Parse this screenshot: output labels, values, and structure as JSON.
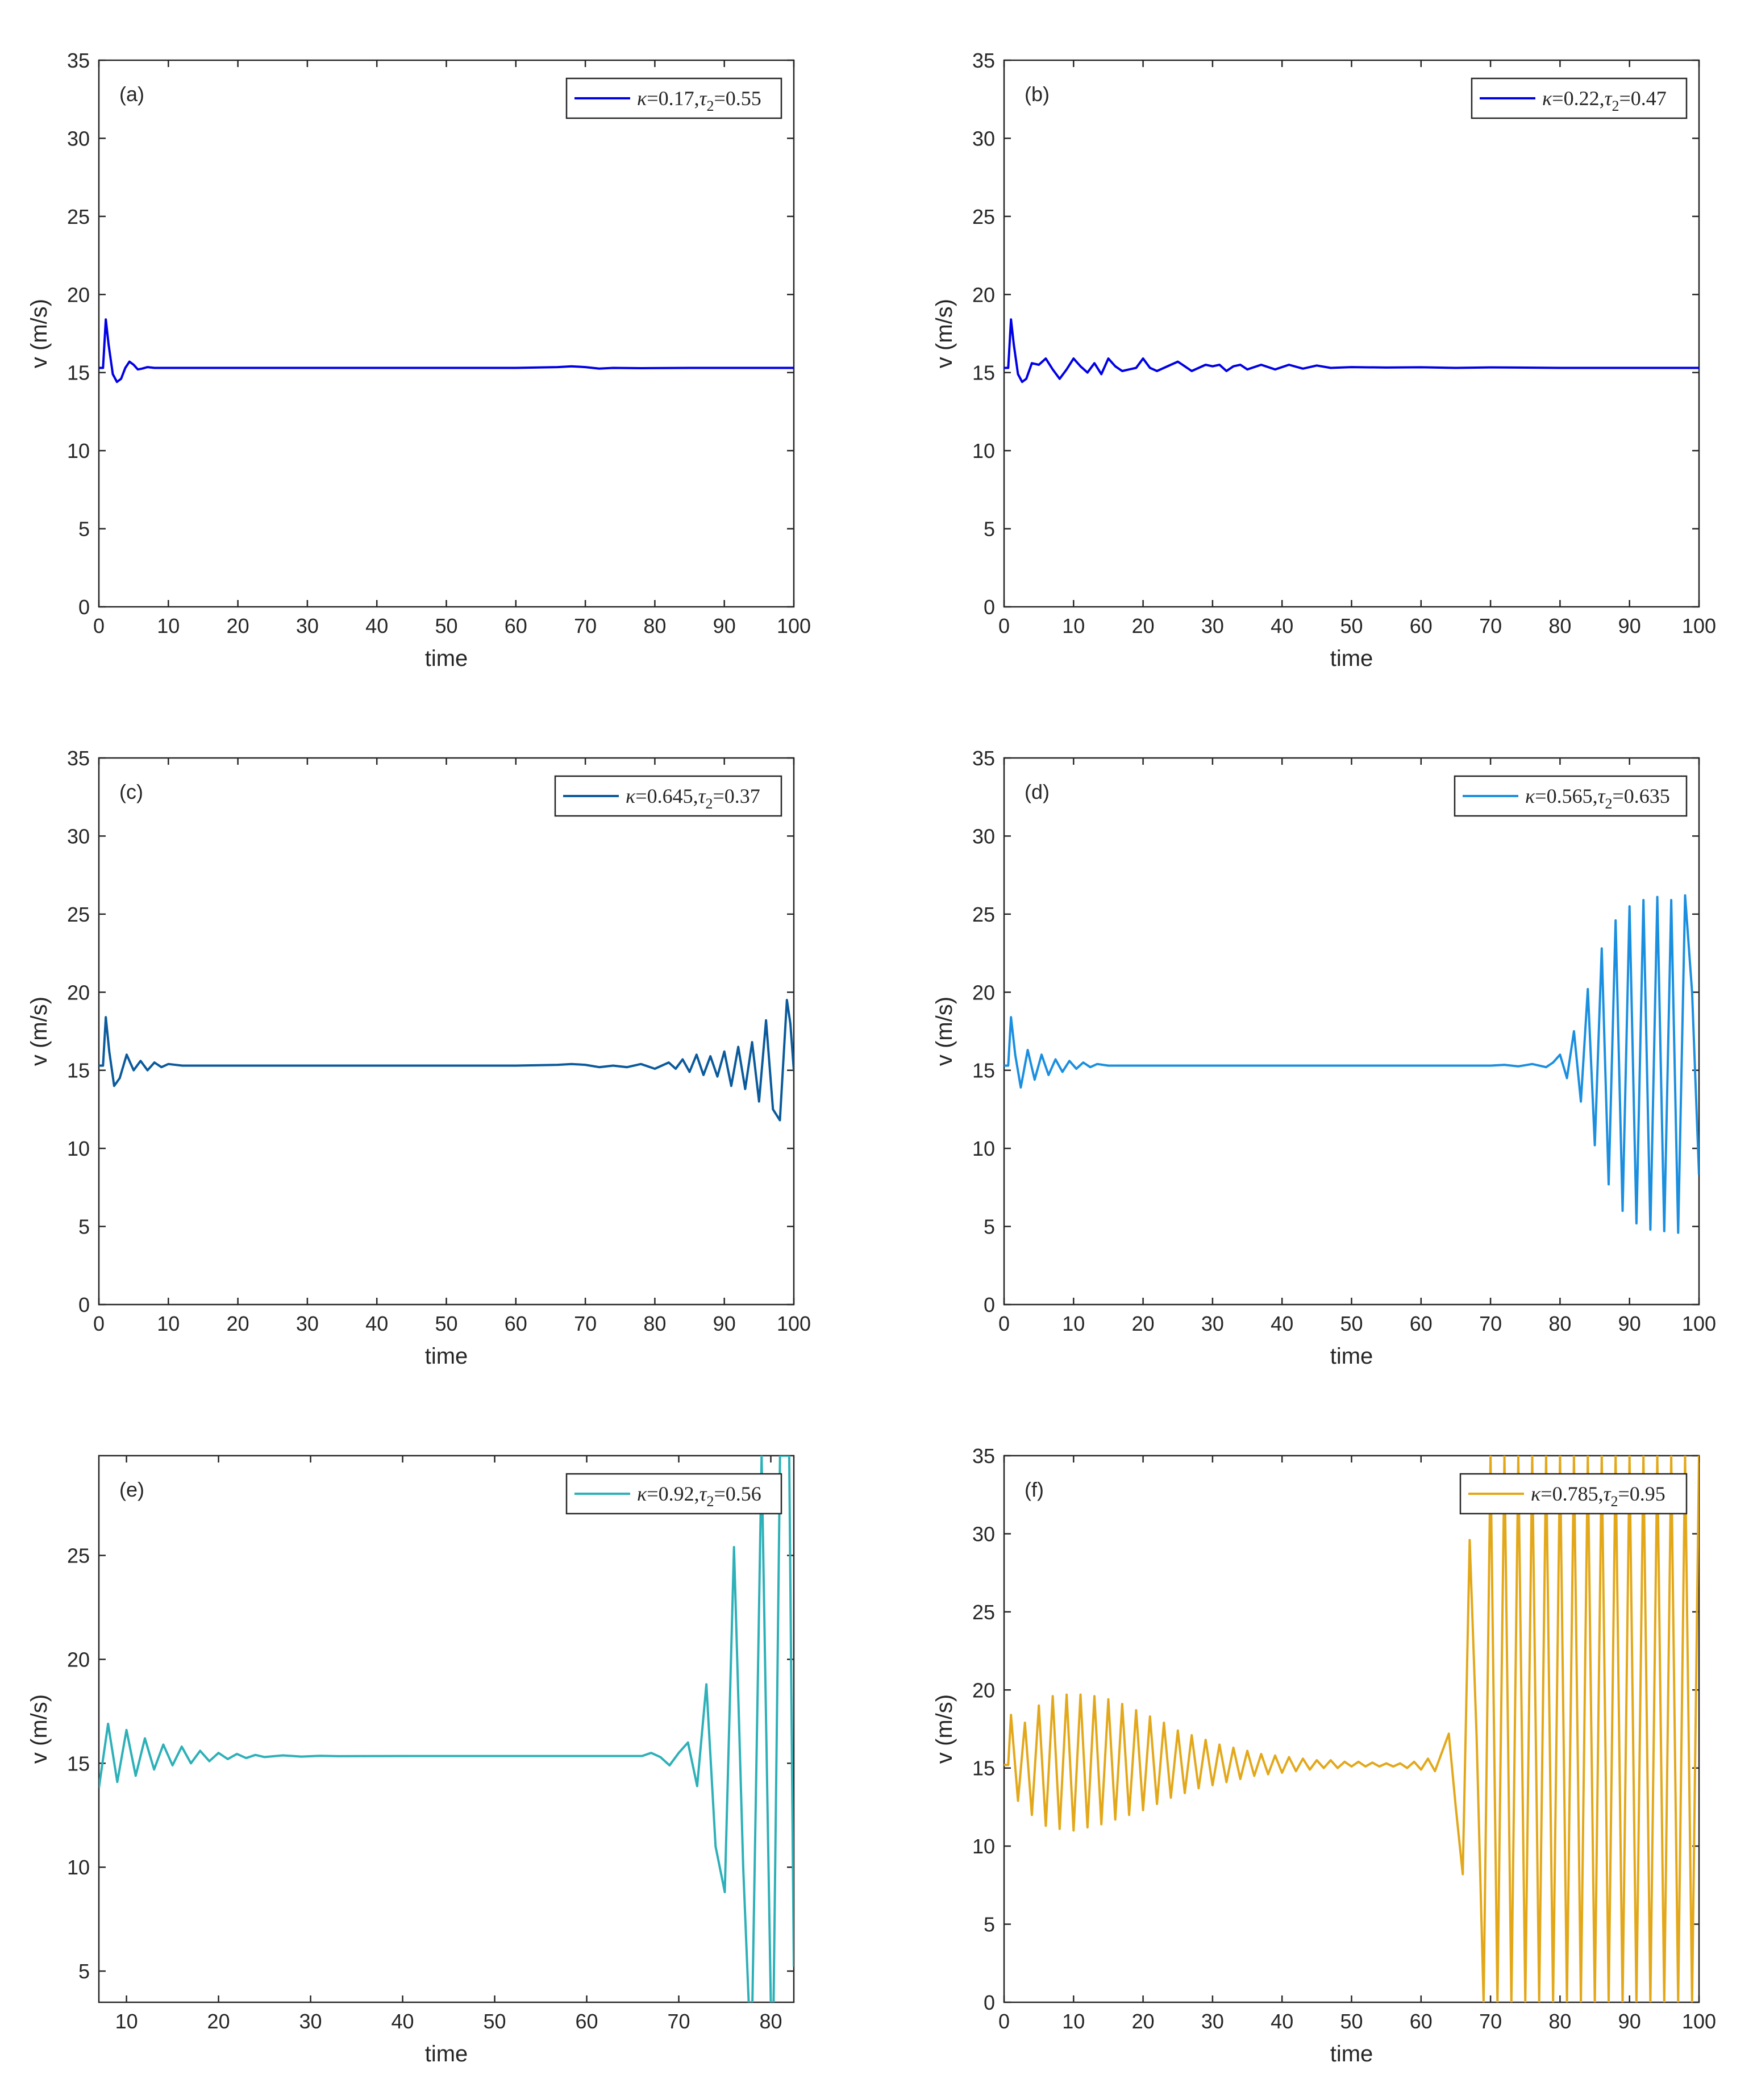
{
  "chart_data": [
    {
      "type": "line",
      "panel_label": "(a)",
      "xlabel": "time",
      "ylabel": "v (m/s)",
      "xlim": [
        0,
        100
      ],
      "ylim": [
        0,
        35
      ],
      "xticks": [
        0,
        10,
        20,
        30,
        40,
        50,
        60,
        70,
        80,
        90,
        100
      ],
      "yticks": [
        0,
        5,
        10,
        15,
        20,
        25,
        30,
        35
      ],
      "legend_location": "top-right",
      "series": [
        {
          "name": "κ=0.17, τ2=0.55",
          "legend": {
            "kappa_label": "κ",
            "kappa_value": "=0.17,",
            "tau_label": "τ",
            "tau_sub": "2",
            "tau_value": "=0.55"
          },
          "color": "#0000e6",
          "x": [
            0,
            0.6,
            1.0,
            1.4,
            2.0,
            2.6,
            3.2,
            3.8,
            4.4,
            5.0,
            5.6,
            6.2,
            7.0,
            8.0,
            10,
            20,
            40,
            60,
            66,
            68,
            70,
            72,
            74,
            78,
            85,
            100
          ],
          "y": [
            15.3,
            15.3,
            18.4,
            16.8,
            14.9,
            14.4,
            14.6,
            15.3,
            15.7,
            15.5,
            15.2,
            15.25,
            15.35,
            15.3,
            15.3,
            15.3,
            15.3,
            15.3,
            15.35,
            15.4,
            15.35,
            15.25,
            15.3,
            15.28,
            15.3,
            15.3
          ]
        }
      ]
    },
    {
      "type": "line",
      "panel_label": "(b)",
      "xlabel": "time",
      "ylabel": "v (m/s)",
      "xlim": [
        0,
        100
      ],
      "ylim": [
        0,
        35
      ],
      "xticks": [
        0,
        10,
        20,
        30,
        40,
        50,
        60,
        70,
        80,
        90,
        100
      ],
      "yticks": [
        0,
        5,
        10,
        15,
        20,
        25,
        30,
        35
      ],
      "legend_location": "top-right",
      "series": [
        {
          "name": "κ=0.22, τ2=0.47",
          "legend": {
            "kappa_label": "κ",
            "kappa_value": "=0.22,",
            "tau_label": "τ",
            "tau_sub": "2",
            "tau_value": "=0.47"
          },
          "color": "#0000e6",
          "x": [
            0,
            0.6,
            1.0,
            1.4,
            2.0,
            2.6,
            3.2,
            4.0,
            5.0,
            6.0,
            7.0,
            8.0,
            9.0,
            10.0,
            11.0,
            12.0,
            13.0,
            14.0,
            15.0,
            16.0,
            17.0,
            18.0,
            19.0,
            20.0,
            21.0,
            22.0,
            23.0,
            24.0,
            25.0,
            26.0,
            27.0,
            28.0,
            29.0,
            30.0,
            31.0,
            32.0,
            33.0,
            34.0,
            35.0,
            37.0,
            39.0,
            41.0,
            43.0,
            45.0,
            47.0,
            50.0,
            55.0,
            60.0,
            65.0,
            70.0,
            80.0,
            90.0,
            100.0
          ],
          "y": [
            15.3,
            15.3,
            18.4,
            16.8,
            14.9,
            14.4,
            14.6,
            15.6,
            15.5,
            15.9,
            15.2,
            14.6,
            15.2,
            15.9,
            15.4,
            15.0,
            15.6,
            14.9,
            15.9,
            15.4,
            15.1,
            15.2,
            15.3,
            15.9,
            15.3,
            15.1,
            15.3,
            15.5,
            15.7,
            15.4,
            15.1,
            15.3,
            15.5,
            15.4,
            15.5,
            15.1,
            15.4,
            15.5,
            15.2,
            15.5,
            15.2,
            15.5,
            15.25,
            15.45,
            15.3,
            15.35,
            15.32,
            15.34,
            15.3,
            15.33,
            15.3,
            15.3,
            15.3
          ]
        }
      ]
    },
    {
      "type": "line",
      "panel_label": "(c)",
      "xlabel": "time",
      "ylabel": "v (m/s)",
      "xlim": [
        0,
        100
      ],
      "ylim": [
        0,
        35
      ],
      "xticks": [
        0,
        10,
        20,
        30,
        40,
        50,
        60,
        70,
        80,
        90,
        100
      ],
      "yticks": [
        0,
        5,
        10,
        15,
        20,
        25,
        30,
        35
      ],
      "legend_location": "top-right",
      "series": [
        {
          "name": "κ=0.645, τ2=0.37",
          "legend": {
            "kappa_label": "κ",
            "kappa_value": "=0.645,",
            "tau_label": "τ",
            "tau_sub": "2",
            "tau_value": "=0.37"
          },
          "color": "#0a5a9c",
          "x": [
            0,
            0.6,
            1.0,
            1.5,
            2.2,
            3.0,
            4.0,
            5.0,
            6.0,
            7.0,
            8.0,
            9.0,
            10.0,
            12.0,
            15.0,
            30.0,
            60.0,
            66.0,
            68.0,
            70.0,
            72.0,
            74.0,
            76.0,
            78.0,
            80.0,
            82.0,
            83.0,
            84.0,
            85.0,
            86.0,
            87.0,
            88.0,
            89.0,
            90.0,
            91.0,
            92.0,
            93.0,
            94.0,
            95.0,
            96.0,
            97.0,
            98.0,
            99.0,
            99.5,
            100.0
          ],
          "y": [
            15.3,
            15.3,
            18.4,
            16.2,
            14.0,
            14.5,
            16.0,
            15.0,
            15.6,
            15.0,
            15.5,
            15.2,
            15.4,
            15.3,
            15.3,
            15.3,
            15.3,
            15.35,
            15.4,
            15.35,
            15.2,
            15.3,
            15.2,
            15.4,
            15.1,
            15.5,
            15.1,
            15.7,
            14.9,
            16.0,
            14.7,
            15.9,
            14.6,
            16.2,
            14.0,
            16.5,
            13.8,
            16.8,
            13.0,
            18.2,
            12.5,
            11.8,
            19.5,
            18.0,
            15.0
          ]
        }
      ]
    },
    {
      "type": "line",
      "panel_label": "(d)",
      "xlabel": "time",
      "ylabel": "v (m/s)",
      "xlim": [
        0,
        100
      ],
      "ylim": [
        0,
        35
      ],
      "xticks": [
        0,
        10,
        20,
        30,
        40,
        50,
        60,
        70,
        80,
        90,
        100
      ],
      "yticks": [
        0,
        5,
        10,
        15,
        20,
        25,
        30,
        35
      ],
      "legend_location": "top-right",
      "series": [
        {
          "name": "κ=0.565, τ2=0.635",
          "legend": {
            "kappa_label": "κ",
            "kappa_value": "=0.565,",
            "tau_label": "τ",
            "tau_sub": "2",
            "tau_value": "=0.635"
          },
          "color": "#1a8fe0",
          "x": [
            0,
            0.6,
            1.0,
            1.6,
            2.4,
            3.4,
            4.4,
            5.4,
            6.4,
            7.4,
            8.4,
            9.4,
            10.4,
            11.4,
            12.4,
            13.4,
            15.0,
            30.0,
            60.0,
            70.0,
            72.0,
            74.0,
            76.0,
            78.0,
            79.0,
            80.0,
            81.0,
            82.0,
            83.0,
            84.0,
            85.0,
            86.0,
            87.0,
            88.0,
            89.0,
            90.0,
            91.0,
            92.0,
            93.0,
            94.0,
            95.0,
            96.0,
            97.0,
            98.0,
            99.0,
            100.0
          ],
          "y": [
            15.3,
            15.3,
            18.4,
            16.0,
            13.9,
            16.3,
            14.4,
            16.0,
            14.7,
            15.7,
            14.9,
            15.6,
            15.1,
            15.5,
            15.2,
            15.4,
            15.3,
            15.3,
            15.3,
            15.3,
            15.35,
            15.25,
            15.4,
            15.2,
            15.5,
            16.0,
            14.5,
            17.5,
            13.0,
            20.2,
            10.2,
            22.8,
            7.7,
            24.6,
            6.0,
            25.5,
            5.2,
            25.9,
            4.8,
            26.1,
            4.7,
            25.9,
            4.6,
            26.2,
            20.0,
            8.3
          ]
        }
      ]
    },
    {
      "type": "line",
      "panel_label": "(e)",
      "xlabel": "time",
      "ylabel": "v (m/s)",
      "xlim": [
        7,
        82.5
      ],
      "ylim": [
        3.5,
        29.8
      ],
      "xticks": [
        10,
        20,
        30,
        40,
        50,
        60,
        70,
        80
      ],
      "yticks": [
        5,
        10,
        15,
        20,
        25
      ],
      "legend_location": "top-right",
      "series": [
        {
          "name": "κ=0.92, τ2=0.56",
          "legend": {
            "kappa_label": "κ",
            "kappa_value": "=0.92,",
            "tau_label": "τ",
            "tau_sub": "2",
            "tau_value": "=0.56"
          },
          "color": "#2db0b8",
          "x": [
            7.0,
            8.0,
            9.0,
            10.0,
            11.0,
            12.0,
            13.0,
            14.0,
            15.0,
            16.0,
            17.0,
            18.0,
            19.0,
            20.0,
            21.0,
            22.0,
            23.0,
            24.0,
            25.0,
            27.0,
            29.0,
            31.0,
            33.0,
            40.0,
            60.0,
            66.0,
            67.0,
            68.0,
            69.0,
            70.0,
            71.0,
            72.0,
            73.0,
            74.0,
            75.0,
            76.0,
            77.0,
            77.6,
            78.0,
            79.0,
            80.0,
            80.3,
            81.0,
            82.0,
            82.5
          ],
          "y": [
            13.8,
            16.9,
            14.1,
            16.6,
            14.4,
            16.2,
            14.7,
            15.9,
            14.9,
            15.8,
            15.0,
            15.6,
            15.1,
            15.5,
            15.2,
            15.45,
            15.25,
            15.4,
            15.3,
            15.38,
            15.32,
            15.36,
            15.34,
            15.35,
            15.35,
            15.35,
            15.5,
            15.3,
            14.9,
            15.5,
            16.0,
            13.9,
            18.8,
            11.0,
            8.8,
            25.4,
            10.0,
            3.5,
            3.5,
            29.8,
            3.5,
            3.5,
            29.8,
            29.8,
            5.2
          ]
        }
      ]
    },
    {
      "type": "line",
      "panel_label": "(f)",
      "xlabel": "time",
      "ylabel": "v (m/s)",
      "xlim": [
        0,
        100
      ],
      "ylim": [
        0,
        35
      ],
      "xticks": [
        0,
        10,
        20,
        30,
        40,
        50,
        60,
        70,
        80,
        90,
        100
      ],
      "yticks": [
        0,
        5,
        10,
        15,
        20,
        25,
        30,
        35
      ],
      "legend_location": "top-right",
      "series": [
        {
          "name": "κ=0.785, τ2=0.95",
          "legend": {
            "kappa_label": "κ",
            "kappa_value": "=0.785,",
            "tau_label": "τ",
            "tau_sub": "2",
            "tau_value": "=0.95"
          },
          "color": "#e3a81a",
          "x": [
            0.0,
            0.6,
            1.0,
            2.0,
            3.0,
            4.0,
            5.0,
            6.0,
            7.0,
            8.0,
            9.0,
            10.0,
            11.0,
            12.0,
            13.0,
            14.0,
            15.0,
            16.0,
            17.0,
            18.0,
            19.0,
            20.0,
            21.0,
            22.0,
            23.0,
            24.0,
            25.0,
            26.0,
            27.0,
            28.0,
            29.0,
            30.0,
            31.0,
            32.0,
            33.0,
            34.0,
            35.0,
            36.0,
            37.0,
            38.0,
            39.0,
            40.0,
            41.0,
            42.0,
            43.0,
            44.0,
            45.0,
            46.0,
            47.0,
            48.0,
            49.0,
            50.0,
            51.0,
            52.0,
            53.0,
            54.0,
            55.0,
            56.0,
            57.0,
            58.0,
            59.0,
            60.0,
            61.0,
            62.0,
            63.0,
            64.0,
            65.0,
            66.0,
            67.0,
            68.0,
            69.0,
            70.0,
            71.0,
            72.0,
            73.0,
            74.0,
            75.0,
            76.0,
            77.0,
            78.0,
            79.0,
            80.0,
            81.0,
            82.0,
            83.0,
            84.0,
            85.0,
            86.0,
            87.0,
            88.0,
            89.0,
            90.0,
            91.0,
            92.0,
            93.0,
            94.0,
            95.0,
            96.0,
            97.0,
            98.0,
            99.0,
            100.0
          ],
          "y": [
            15.2,
            15.2,
            18.4,
            12.9,
            17.9,
            12.0,
            19.0,
            11.3,
            19.6,
            11.1,
            19.7,
            11.0,
            19.7,
            11.2,
            19.6,
            11.4,
            19.4,
            11.7,
            19.1,
            12.0,
            18.7,
            12.3,
            18.3,
            12.7,
            17.9,
            13.1,
            17.4,
            13.4,
            17.1,
            13.7,
            16.8,
            13.9,
            16.5,
            14.1,
            16.3,
            14.3,
            16.1,
            14.5,
            15.9,
            14.6,
            15.8,
            14.7,
            15.7,
            14.8,
            15.6,
            14.9,
            15.5,
            15.0,
            15.5,
            15.0,
            15.4,
            15.1,
            15.4,
            15.1,
            15.35,
            15.1,
            15.3,
            15.1,
            15.3,
            15.0,
            15.4,
            14.9,
            15.6,
            14.8,
            16.0,
            17.2,
            12.5,
            8.2,
            29.6,
            17.0,
            0.0,
            35.0,
            0.0,
            35.0,
            0.0,
            35.0,
            0.0,
            35.0,
            0.0,
            35.0,
            0.0,
            35.0,
            0.0,
            35.0,
            0.0,
            35.0,
            0.0,
            35.0,
            0.0,
            35.0,
            0.0,
            35.0,
            0.0,
            35.0,
            0.0,
            35.0,
            0.0,
            35.0,
            0.0,
            35.0,
            0.0,
            35.0
          ]
        }
      ]
    }
  ]
}
